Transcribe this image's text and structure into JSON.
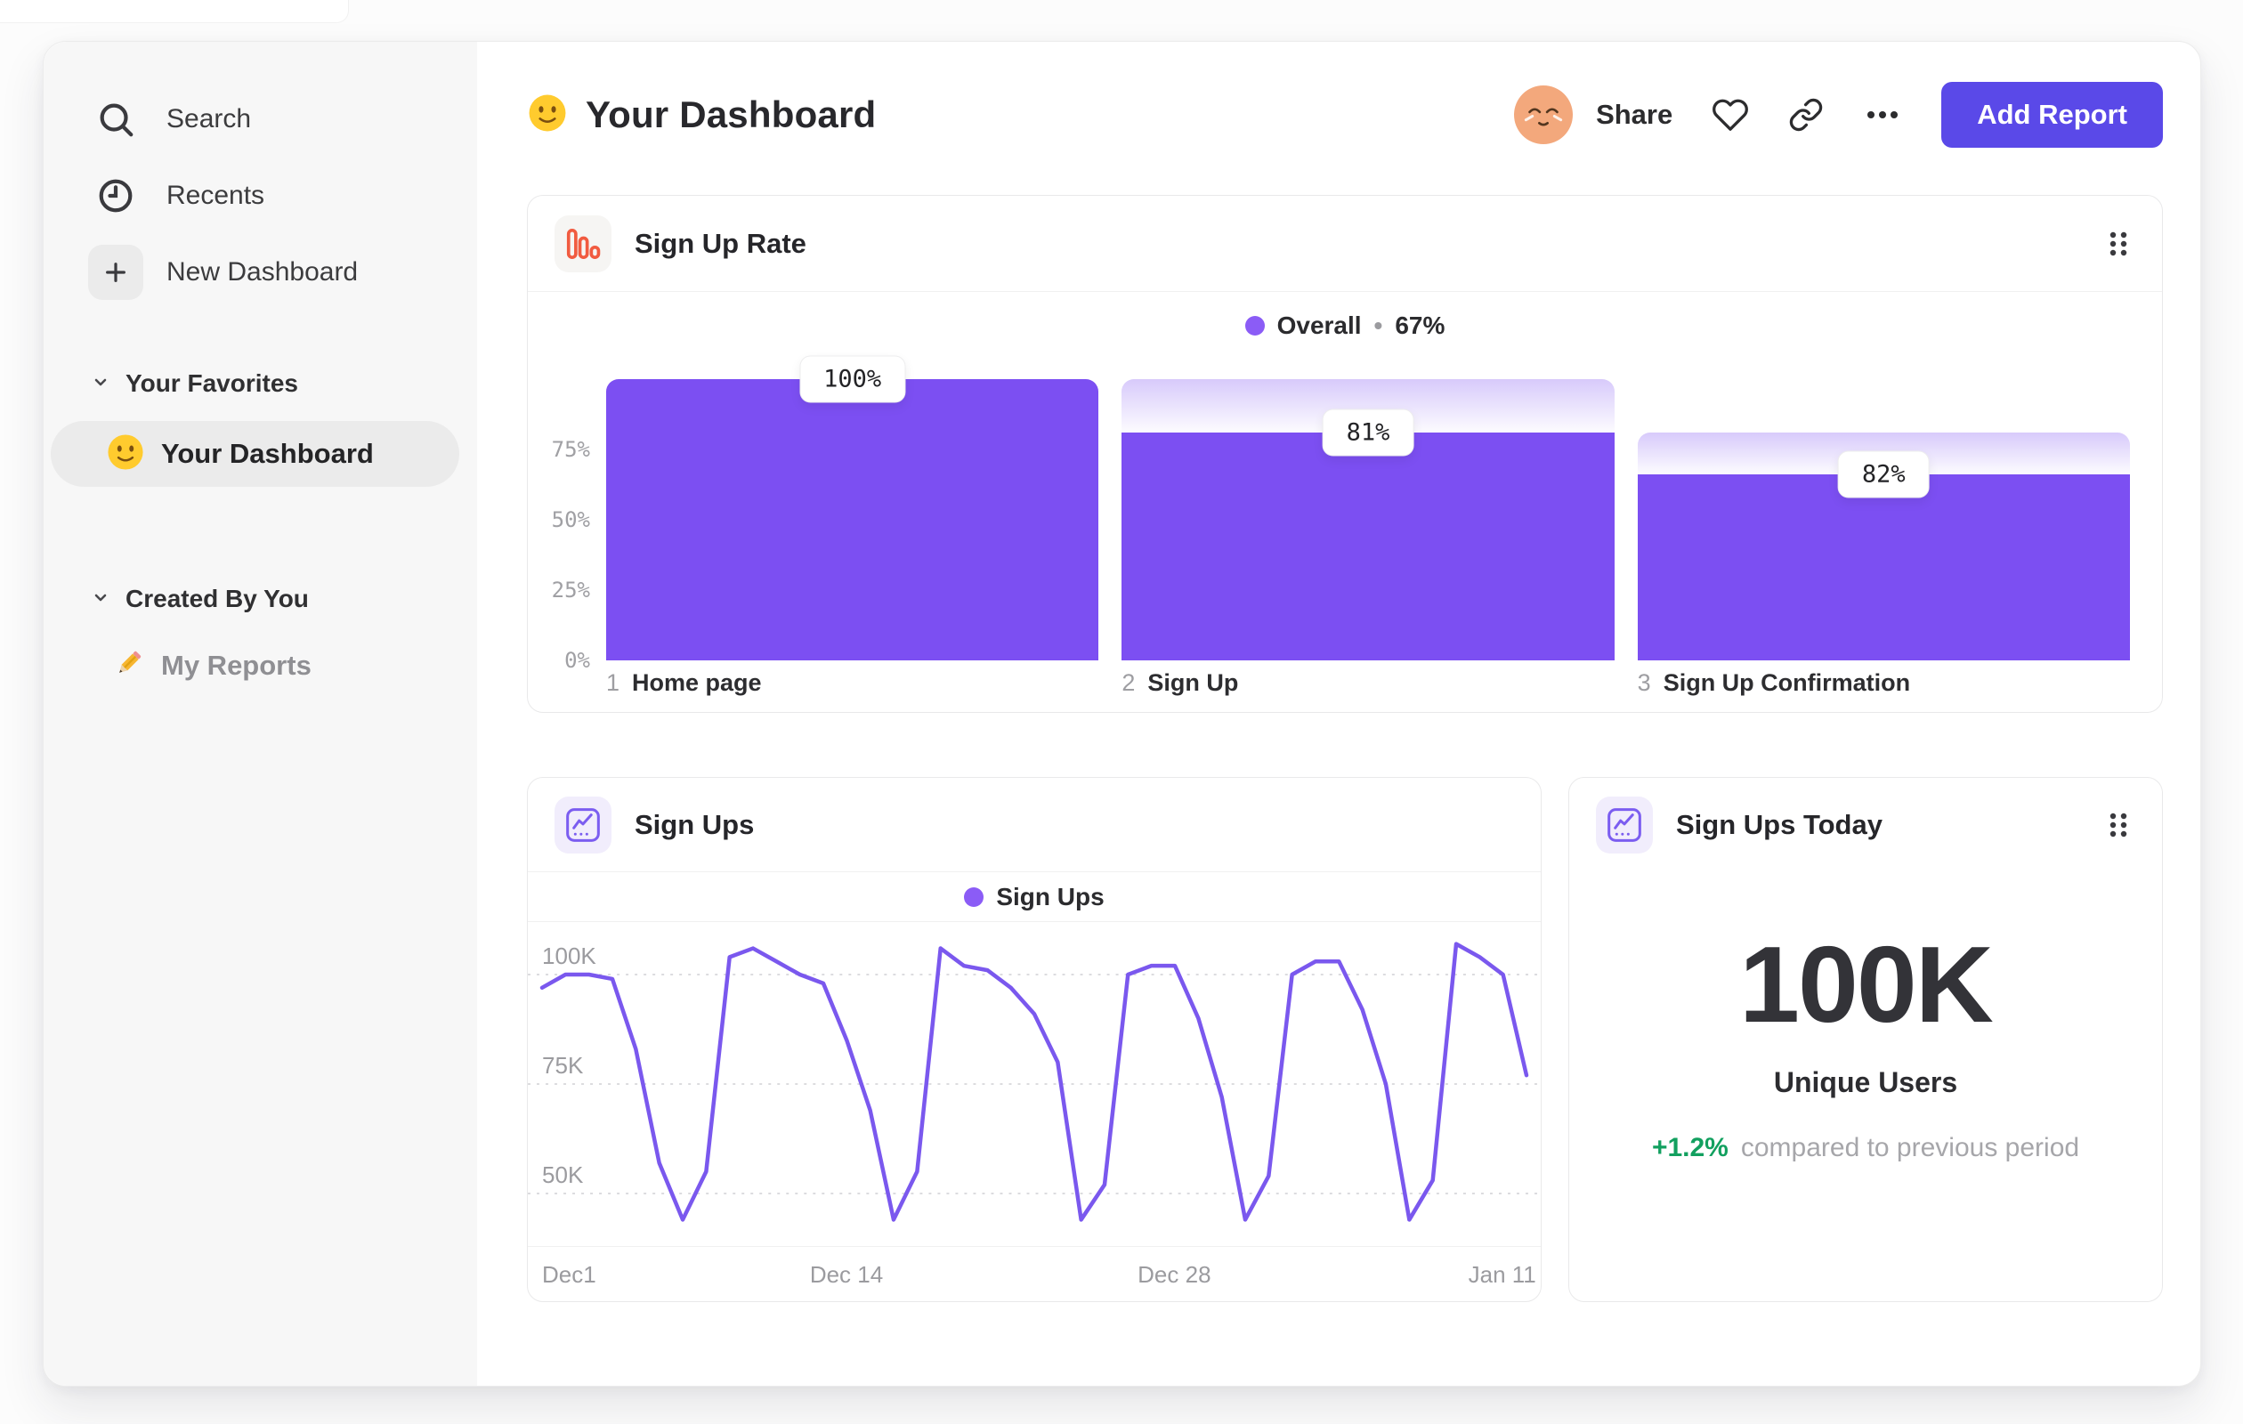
{
  "sidebar": {
    "nav_items": [
      {
        "label": "Search",
        "icon": "search-icon"
      },
      {
        "label": "Recents",
        "icon": "clock-icon"
      },
      {
        "label": "New Dashboard",
        "icon": "plus-icon"
      }
    ],
    "sections": [
      {
        "title": "Your Favorites",
        "items": [
          {
            "label": "Your Dashboard",
            "emoji": "slightly-smiling-face",
            "selected": true
          }
        ]
      },
      {
        "title": "Created By You",
        "items": [
          {
            "label": "My Reports",
            "emoji": "pencil",
            "selected": false
          }
        ]
      }
    ]
  },
  "header": {
    "emoji": "slightly-smiling-face",
    "title": "Your Dashboard",
    "share_label": "Share",
    "add_report_label": "Add Report"
  },
  "cards": {
    "sign_up_rate": {
      "title": "Sign Up Rate",
      "legend": {
        "label": "Overall",
        "separator": "•",
        "value": "67%",
        "dot_color": "#8b5cf6"
      }
    },
    "sign_ups": {
      "title": "Sign Ups",
      "legend": {
        "label": "Sign Ups",
        "dot_color": "#8b5cf6"
      }
    },
    "sign_ups_today": {
      "title": "Sign Ups Today",
      "metric_value": "100K",
      "metric_label": "Unique Users",
      "delta": "+1.2%",
      "delta_note": "compared to previous period"
    }
  },
  "chart_data": [
    {
      "id": "sign-up-rate-funnel",
      "type": "bar",
      "title": "Sign Up Rate",
      "legend": "Overall • 67%",
      "categories": [
        "Home page",
        "Sign Up",
        "Sign Up Confirmation"
      ],
      "step_numbers": [
        "1",
        "2",
        "3"
      ],
      "step_conversion_labels": [
        "100%",
        "81%",
        "82%"
      ],
      "cumulative_values": [
        100,
        81,
        66
      ],
      "previous_values": [
        100,
        100,
        81
      ],
      "overall_conversion": "67%",
      "y_ticks": [
        {
          "label": "75%",
          "value": 75
        },
        {
          "label": "50%",
          "value": 50
        },
        {
          "label": "25%",
          "value": 25
        },
        {
          "label": "0%",
          "value": 0
        }
      ],
      "ylim": [
        0,
        100
      ],
      "grid": false,
      "legend_position": "top-center"
    },
    {
      "id": "sign-ups-line",
      "type": "line",
      "title": "Sign Ups",
      "series": [
        {
          "name": "Sign Ups",
          "values": [
            97,
            100,
            100,
            99,
            83,
            57,
            44,
            55,
            104,
            106,
            103,
            100,
            98,
            85,
            69,
            44,
            55,
            106,
            102,
            101,
            97,
            91,
            80,
            44,
            52,
            100,
            102,
            102,
            90,
            72,
            44,
            54,
            100,
            103,
            103,
            92,
            75,
            44,
            53,
            107,
            104,
            100,
            77
          ]
        }
      ],
      "values_unit": "K",
      "x_ticks": [
        {
          "label": "Dec1",
          "day": 0
        },
        {
          "label": "Dec 14",
          "day": 13
        },
        {
          "label": "Dec 28",
          "day": 27
        },
        {
          "label": "Jan 11",
          "day": 41
        }
      ],
      "domain_days": 42,
      "y_ticks": [
        {
          "label": "100K",
          "value": 100
        },
        {
          "label": "75K",
          "value": 75
        },
        {
          "label": "50K",
          "value": 50
        }
      ],
      "ylim": [
        38,
        112
      ],
      "grid": "dashed-horizontal",
      "legend_position": "top-center"
    }
  ],
  "colors": {
    "accent_purple": "#7c4ff2",
    "line_purple": "#7a58ee",
    "legend_dot_purple": "#8b5cf6",
    "button_purple": "#5a49e8",
    "icon_orange": "#f15b40",
    "delta_green": "#12a05f",
    "sidebar_bg": "#f7f7f7"
  }
}
